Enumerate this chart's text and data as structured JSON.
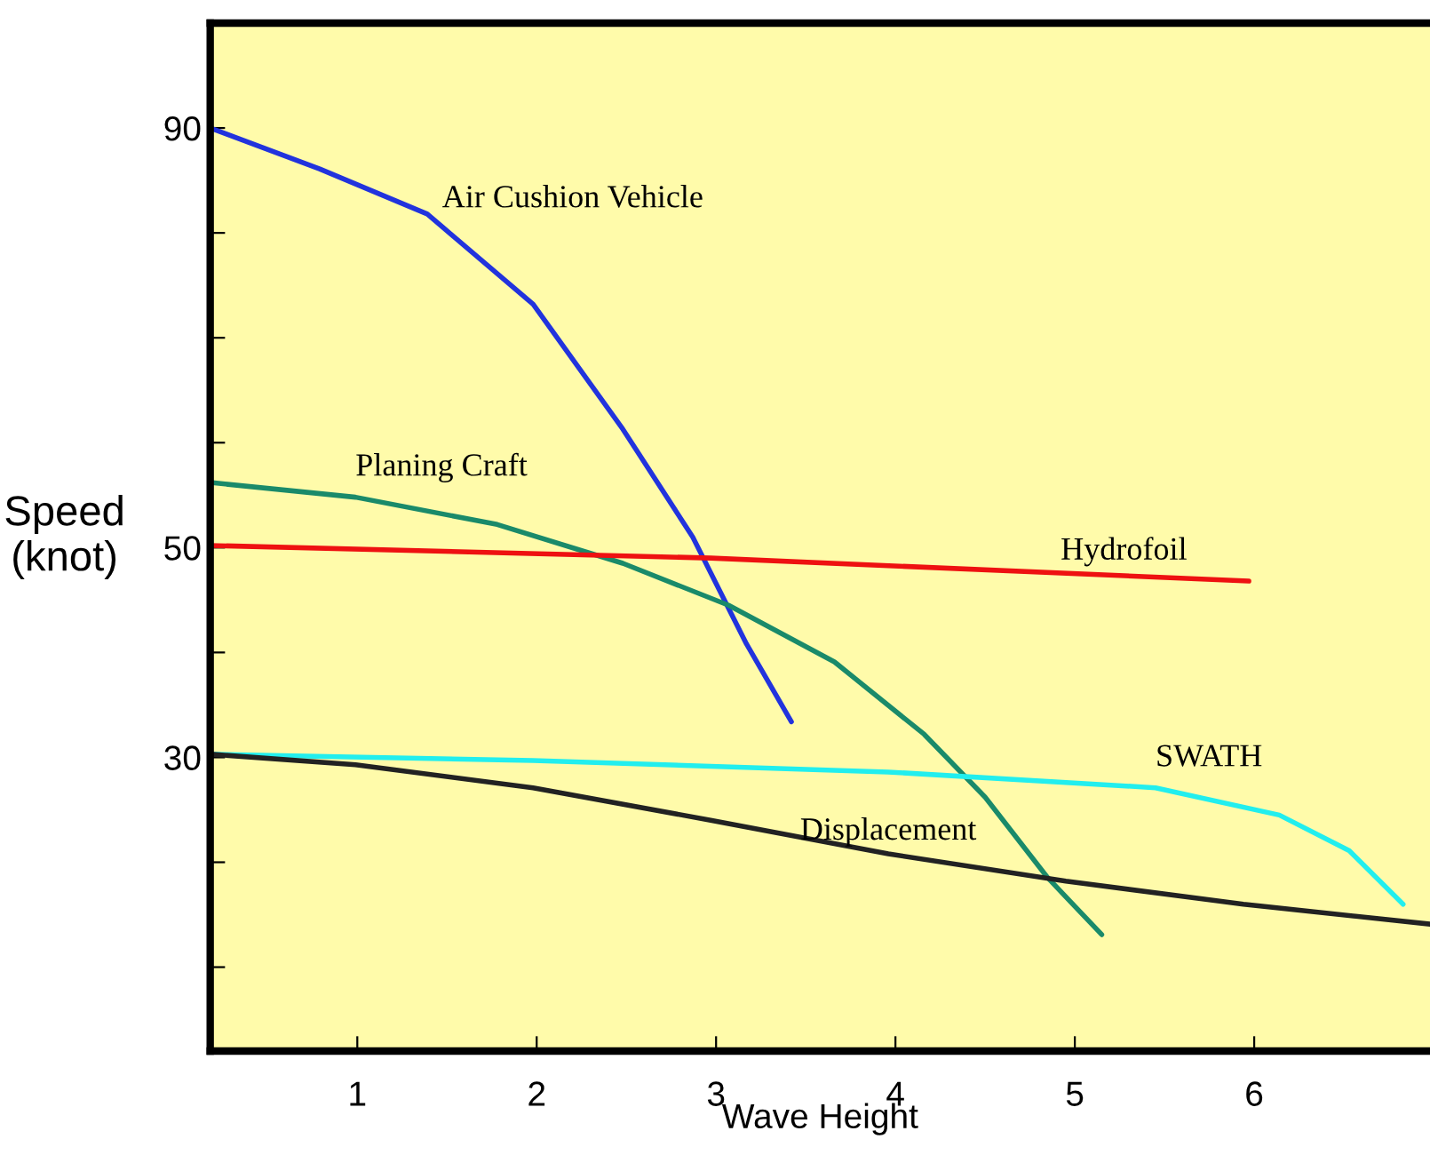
{
  "chart_data": {
    "type": "line",
    "xlabel": "Wave Height",
    "ylabel": "Speed\n(knot)",
    "xlim": [
      0.18,
      6.98
    ],
    "ylim": [
      2,
      100
    ],
    "xticks": [
      1,
      2,
      3,
      4,
      5,
      6
    ],
    "yticks": [
      {
        "value": 10,
        "label": null
      },
      {
        "value": 20,
        "label": null
      },
      30,
      {
        "value": 40,
        "label": null
      },
      50,
      {
        "value": 60,
        "label": null
      },
      {
        "value": 70,
        "label": null
      },
      {
        "value": 80,
        "label": null
      },
      90
    ],
    "grid": false,
    "legend": false,
    "series": [
      {
        "name": "Air Cushion Vehicle",
        "color": "#2233dd",
        "x": [
          0.18,
          0.79,
          1.39,
          1.98,
          2.48,
          2.87,
          3.17,
          3.42
        ],
        "values": [
          90,
          86.1,
          81.8,
          73.2,
          61.3,
          51,
          40.8,
          33.4
        ]
      },
      {
        "name": "Planing Craft",
        "color": "#1a8a6a",
        "x": [
          0.18,
          0.99,
          1.78,
          2.48,
          3.07,
          3.66,
          4.16,
          4.5,
          4.85,
          5.15
        ],
        "values": [
          56.2,
          54.8,
          52.2,
          48.5,
          44.5,
          39.1,
          32.2,
          26.2,
          18.5,
          13.1
        ]
      },
      {
        "name": "Hydrofoil",
        "color": "#ee1111",
        "x": [
          0.18,
          2.97,
          5.97
        ],
        "values": [
          50.2,
          49,
          46.8
        ]
      },
      {
        "name": "SWATH",
        "color": "#22eeee",
        "x": [
          0.18,
          1.98,
          3.96,
          5.45,
          6.14,
          6.53,
          6.83
        ],
        "values": [
          30.3,
          29.7,
          28.6,
          27.1,
          24.5,
          21.1,
          16
        ]
      },
      {
        "name": "Displacement",
        "color": "#222222",
        "x": [
          0.18,
          0.99,
          1.98,
          2.97,
          3.96,
          4.95,
          5.94,
          6.98
        ],
        "values": [
          30.3,
          29.3,
          27.1,
          24,
          20.8,
          18.2,
          16,
          14.1
        ]
      }
    ]
  }
}
